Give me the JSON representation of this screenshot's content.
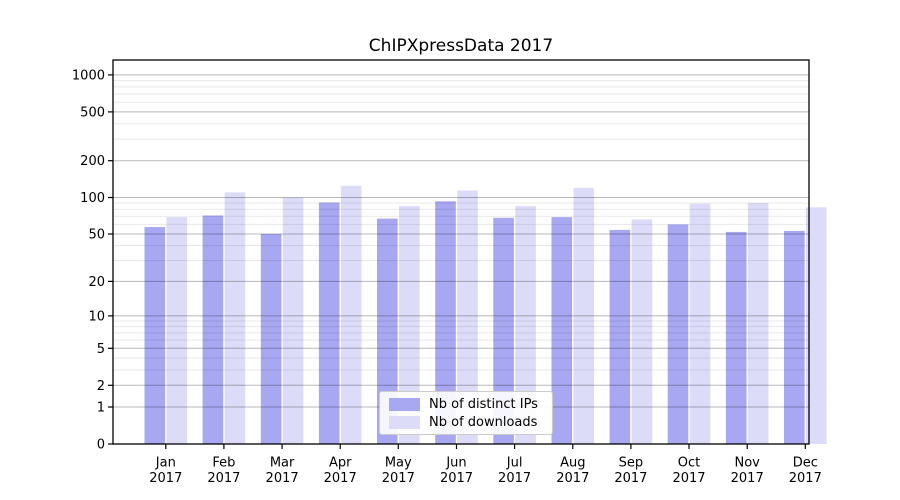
{
  "chart_data": {
    "type": "bar",
    "title": "ChIPXpressData 2017",
    "categories": [
      "Jan",
      "Feb",
      "Mar",
      "Apr",
      "May",
      "Jun",
      "Jul",
      "Aug",
      "Sep",
      "Oct",
      "Nov",
      "Dec"
    ],
    "category_year": "2017",
    "series": [
      {
        "name": "Nb of distinct IPs",
        "color": "#a7a7f2",
        "values": [
          57,
          71,
          50,
          91,
          67,
          93,
          68,
          69,
          54,
          60,
          52,
          53
        ]
      },
      {
        "name": "Nb of downloads",
        "color": "#dcdcf8",
        "values": [
          69,
          110,
          100,
          125,
          85,
          114,
          85,
          120,
          66,
          89,
          90,
          83
        ]
      }
    ],
    "y_ticks": [
      0,
      1,
      2,
      5,
      10,
      20,
      50,
      100,
      200,
      500,
      1000
    ],
    "y_minor_ticks": [
      3,
      4,
      6,
      7,
      8,
      9,
      30,
      40,
      60,
      70,
      80,
      90,
      300,
      400,
      600,
      700,
      800,
      900
    ],
    "y_scale": "log10(value+1)",
    "ylim": [
      0,
      1348
    ],
    "xlabel": "",
    "ylabel": "",
    "grid": true,
    "legend_position": "bottom-center",
    "colors": {
      "major_grid": "rgba(0,0,0,0.28)",
      "minor_grid": "rgba(0,0,0,0.09)",
      "spine": "#000000",
      "text": "#000000",
      "background": "#ffffff"
    }
  }
}
